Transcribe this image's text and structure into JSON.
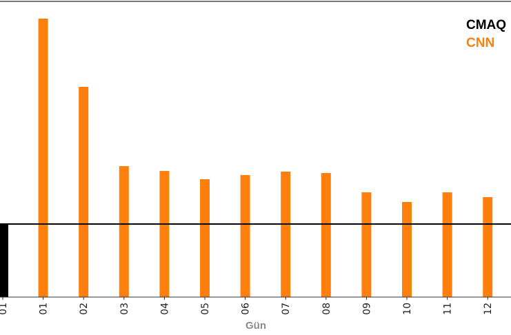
{
  "chart_data": {
    "type": "bar",
    "xlabel": "Gün",
    "ylabel": "",
    "categories": [
      "01",
      "01",
      "02",
      "03",
      "04",
      "05",
      "06",
      "07",
      "08",
      "09",
      "10",
      "11",
      "12"
    ],
    "ylim": [
      0,
      420
    ],
    "reference_line": 106,
    "grid": false,
    "legend_position": "top-right",
    "series": [
      {
        "name": "CMAQ",
        "color": "#000000",
        "values": [
          107,
          null,
          null,
          null,
          null,
          null,
          null,
          null,
          null,
          null,
          null,
          null,
          null
        ]
      },
      {
        "name": "CNN",
        "color": "#ff7f0e",
        "values": [
          null,
          404,
          305,
          190,
          183,
          171,
          177,
          182,
          180,
          152,
          138,
          152,
          145
        ]
      }
    ]
  }
}
